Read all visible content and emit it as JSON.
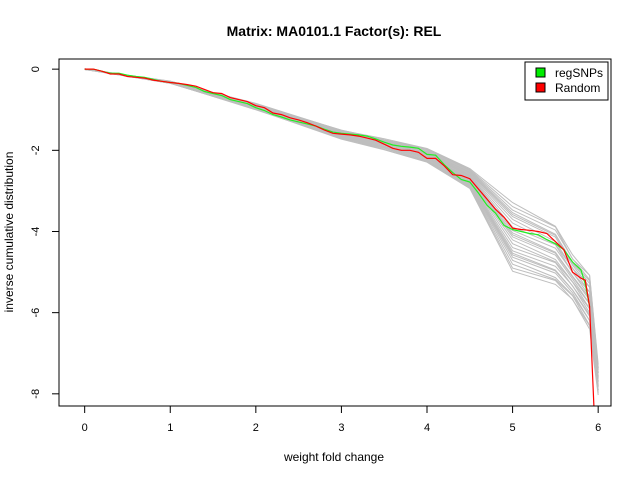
{
  "chart_data": {
    "type": "line",
    "title": "Matrix: MA0101.1 Factor(s): REL",
    "xlabel": "weight fold change",
    "ylabel": "inverse cumulative distribution",
    "xlim": [
      -0.3,
      6.15
    ],
    "ylim": [
      -8.3,
      0.25
    ],
    "xticks": [
      0,
      1,
      2,
      3,
      4,
      5,
      6
    ],
    "yticks": [
      0,
      -2,
      -4,
      -6,
      -8
    ],
    "grid": false,
    "legend": {
      "position": "top-right",
      "entries": [
        {
          "name": "regSNPs",
          "color": "#00ee00"
        },
        {
          "name": "Random",
          "color": "#ff0000"
        }
      ]
    },
    "background_color": "#bebebe",
    "series": [
      {
        "name": "regSNPs",
        "color": "#22ee22",
        "x": [
          0,
          0.1,
          0.2,
          0.3,
          0.4,
          0.5,
          0.6,
          0.7,
          0.8,
          0.9,
          1.0,
          1.1,
          1.2,
          1.3,
          1.4,
          1.5,
          1.6,
          1.7,
          1.8,
          1.9,
          2.0,
          2.1,
          2.2,
          2.3,
          2.4,
          2.5,
          2.6,
          2.7,
          2.8,
          2.9,
          3.0,
          3.1,
          3.2,
          3.3,
          3.4,
          3.5,
          3.6,
          3.7,
          3.8,
          3.9,
          4.0,
          4.1,
          4.2,
          4.3,
          4.4,
          4.5,
          4.6,
          4.7,
          4.8,
          4.9,
          5.0,
          5.1,
          5.2,
          5.3,
          5.4,
          5.5,
          5.6,
          5.7,
          5.8,
          5.85,
          5.9
        ],
        "y": [
          0,
          0,
          -0.05,
          -0.1,
          -0.1,
          -0.15,
          -0.18,
          -0.2,
          -0.25,
          -0.3,
          -0.33,
          -0.35,
          -0.4,
          -0.45,
          -0.55,
          -0.6,
          -0.65,
          -0.75,
          -0.8,
          -0.85,
          -0.95,
          -1.02,
          -1.12,
          -1.18,
          -1.25,
          -1.3,
          -1.35,
          -1.4,
          -1.48,
          -1.55,
          -1.58,
          -1.6,
          -1.62,
          -1.65,
          -1.72,
          -1.8,
          -1.87,
          -1.9,
          -1.92,
          -1.95,
          -2.1,
          -2.12,
          -2.35,
          -2.55,
          -2.72,
          -2.78,
          -3.05,
          -3.35,
          -3.55,
          -3.85,
          -3.95,
          -4.0,
          -4.05,
          -4.08,
          -4.2,
          -4.3,
          -4.45,
          -4.75,
          -4.95,
          -5.3,
          -5.85
        ]
      },
      {
        "name": "Random",
        "color": "#ff0000",
        "x": [
          0,
          0.1,
          0.2,
          0.3,
          0.4,
          0.5,
          0.6,
          0.7,
          0.8,
          0.9,
          1.0,
          1.1,
          1.2,
          1.3,
          1.4,
          1.5,
          1.6,
          1.7,
          1.8,
          1.9,
          2.0,
          2.1,
          2.2,
          2.3,
          2.4,
          2.5,
          2.6,
          2.7,
          2.8,
          2.9,
          3.0,
          3.1,
          3.2,
          3.3,
          3.4,
          3.5,
          3.6,
          3.7,
          3.8,
          3.9,
          4.0,
          4.1,
          4.2,
          4.3,
          4.4,
          4.5,
          4.6,
          4.7,
          4.8,
          4.9,
          5.0,
          5.1,
          5.2,
          5.3,
          5.4,
          5.5,
          5.6,
          5.7,
          5.8,
          5.85,
          5.9,
          5.95
        ],
        "y": [
          0,
          0,
          -0.05,
          -0.12,
          -0.12,
          -0.18,
          -0.2,
          -0.22,
          -0.27,
          -0.3,
          -0.33,
          -0.35,
          -0.38,
          -0.42,
          -0.5,
          -0.58,
          -0.6,
          -0.7,
          -0.75,
          -0.8,
          -0.9,
          -0.95,
          -1.08,
          -1.12,
          -1.2,
          -1.25,
          -1.32,
          -1.4,
          -1.5,
          -1.58,
          -1.6,
          -1.62,
          -1.65,
          -1.7,
          -1.75,
          -1.85,
          -1.95,
          -2.0,
          -2.0,
          -2.05,
          -2.2,
          -2.2,
          -2.38,
          -2.6,
          -2.62,
          -2.7,
          -2.95,
          -3.2,
          -3.45,
          -3.65,
          -3.92,
          -3.95,
          -3.97,
          -4.0,
          -4.05,
          -4.25,
          -4.45,
          -5.0,
          -5.15,
          -5.2,
          -5.85,
          -8.3
        ]
      }
    ],
    "random_band": {
      "x": [
        0,
        1.0,
        2.0,
        3.0,
        3.5,
        4.0,
        4.5,
        5.0,
        5.5,
        5.7,
        5.9,
        6.0
      ],
      "upper": [
        0,
        -0.3,
        -0.85,
        -1.5,
        -1.72,
        -1.95,
        -2.45,
        -3.3,
        -3.85,
        -4.6,
        -5.05,
        -7.3
      ],
      "lower": [
        0,
        -0.35,
        -1.0,
        -1.72,
        -1.98,
        -2.3,
        -2.95,
        -4.95,
        -5.3,
        -5.7,
        -6.4,
        -8.0
      ]
    }
  }
}
